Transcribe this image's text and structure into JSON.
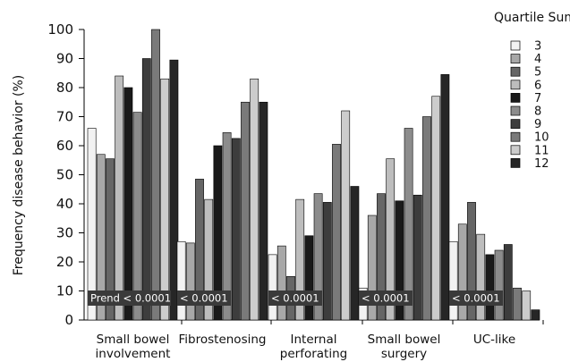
{
  "chart_data": {
    "type": "bar",
    "ylabel": "Frequency disease behavior (%)",
    "ylim": [
      0,
      100
    ],
    "yticks": [
      0,
      10,
      20,
      30,
      40,
      50,
      60,
      70,
      80,
      90,
      100
    ],
    "grid": false,
    "legend": {
      "title": "Quartile Sum",
      "placement": "right"
    },
    "categories": [
      [
        "Small bowel",
        "involvement"
      ],
      [
        "Fibrostenosing"
      ],
      [
        "Internal",
        "perforating"
      ],
      [
        "Small bowel",
        "surgery"
      ],
      [
        "UC-like"
      ]
    ],
    "annotations": [
      "Prend < 0.0001",
      "< 0.0001",
      "< 0.0001",
      "< 0.0001",
      "< 0.0001"
    ],
    "series": [
      {
        "name": "3",
        "color": "#f2f2f2",
        "values": [
          66,
          27,
          22.5,
          11,
          27
        ]
      },
      {
        "name": "4",
        "color": "#a8a8a8",
        "values": [
          57,
          26.5,
          25.5,
          36,
          33
        ]
      },
      {
        "name": "5",
        "color": "#666666",
        "values": [
          55.5,
          48.5,
          15,
          43.5,
          40.5
        ]
      },
      {
        "name": "6",
        "color": "#bdbdbd",
        "values": [
          84,
          41.5,
          41.5,
          55.5,
          29.5
        ]
      },
      {
        "name": "7",
        "color": "#1a1a1a",
        "values": [
          80,
          60,
          29,
          41,
          22.5
        ]
      },
      {
        "name": "8",
        "color": "#8c8c8c",
        "values": [
          71.5,
          64.5,
          43.5,
          66,
          24
        ]
      },
      {
        "name": "9",
        "color": "#3d3d3d",
        "values": [
          90,
          62.5,
          40.5,
          43,
          26
        ]
      },
      {
        "name": "10",
        "color": "#7a7a7a",
        "values": [
          100,
          75,
          60.5,
          70,
          11
        ]
      },
      {
        "name": "11",
        "color": "#cccccc",
        "values": [
          83,
          83,
          72,
          77,
          10
        ]
      },
      {
        "name": "12",
        "color": "#262626",
        "values": [
          89.5,
          75,
          46,
          84.5,
          3.5
        ]
      }
    ]
  }
}
